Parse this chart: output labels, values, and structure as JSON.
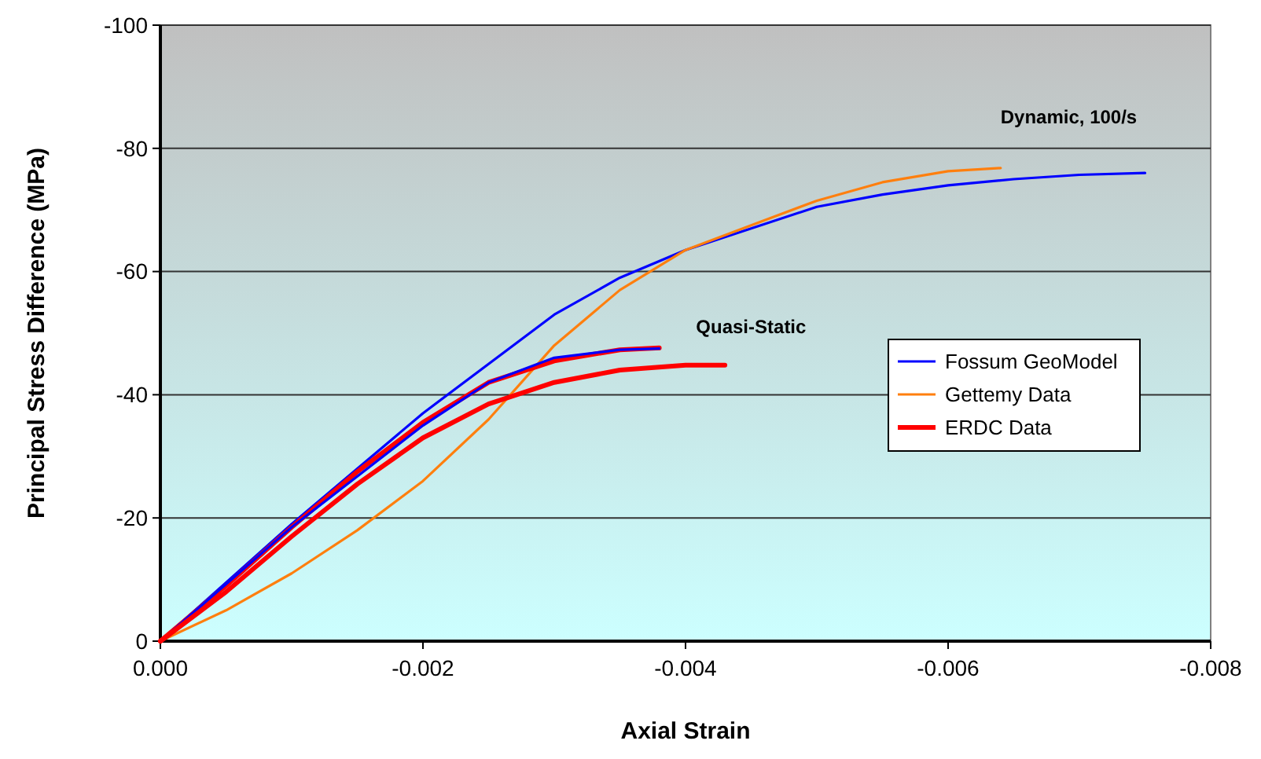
{
  "chart_data": {
    "type": "line",
    "xlabel": "Axial Strain",
    "ylabel": "Principal Stress Difference (MPa)",
    "xlim": [
      0,
      -0.008
    ],
    "ylim": [
      0,
      -100
    ],
    "xticks": [
      {
        "value": 0,
        "label": "0.000"
      },
      {
        "value": -0.002,
        "label": "-0.002"
      },
      {
        "value": -0.004,
        "label": "-0.004"
      },
      {
        "value": -0.006,
        "label": "-0.006"
      },
      {
        "value": -0.008,
        "label": "-0.008"
      }
    ],
    "yticks": [
      0,
      -20,
      -40,
      -60,
      -80,
      -100
    ],
    "grid": "y",
    "legend": "right",
    "line_style": "solid",
    "marker": "none",
    "annotations": [
      "Dynamic, 100/s",
      "Quasi-Static"
    ],
    "series": [
      {
        "name": "Fossum GeoModel",
        "color": "#0000ff",
        "x": [
          0,
          -0.001,
          -0.002,
          -0.003,
          -0.0035,
          -0.004,
          -0.0045,
          -0.005,
          -0.0055,
          -0.006,
          -0.0065,
          -0.007,
          -0.0075
        ],
        "values": [
          0,
          -19,
          -37,
          -53,
          -59,
          -63.5,
          -67,
          -70.5,
          -72.5,
          -74,
          -75,
          -75.7,
          -76
        ]
      },
      {
        "name": "Gettemy Data",
        "color": "#ff7f0e",
        "x": [
          0,
          -0.0005,
          -0.001,
          -0.0015,
          -0.002,
          -0.0025,
          -0.003,
          -0.0035,
          -0.004,
          -0.0045,
          -0.005,
          -0.0055,
          -0.006,
          -0.0064
        ],
        "values": [
          0,
          -5,
          -11,
          -18,
          -26,
          -36,
          -48,
          -57,
          -63.5,
          -67.5,
          -71.5,
          -74.5,
          -76.3,
          -76.8
        ]
      },
      {
        "name": "ERDC Data",
        "color": "#ff0000",
        "x": [
          0,
          -0.0005,
          -0.001,
          -0.0015,
          -0.002,
          -0.0025,
          -0.003,
          -0.0035,
          -0.0038
        ],
        "values": [
          0,
          -9,
          -18.5,
          -27.5,
          -35.5,
          -42,
          -45.5,
          -47.3,
          -47.6
        ]
      },
      {
        "color": "#0000ff",
        "x": [
          0,
          -0.001,
          -0.002,
          -0.0025,
          -0.003,
          -0.0035,
          -0.0038
        ],
        "values": [
          0,
          -18.5,
          -35,
          -42,
          -46,
          -47.3,
          -47.5
        ]
      },
      {
        "color": "#ff0000",
        "x": [
          0,
          -0.0005,
          -0.001,
          -0.0015,
          -0.002,
          -0.0025,
          -0.003,
          -0.0035,
          -0.004,
          -0.0043
        ],
        "values": [
          0,
          -8,
          -17,
          -25.5,
          -33,
          -38.5,
          -42,
          -44,
          -44.8,
          -44.8
        ]
      }
    ]
  }
}
